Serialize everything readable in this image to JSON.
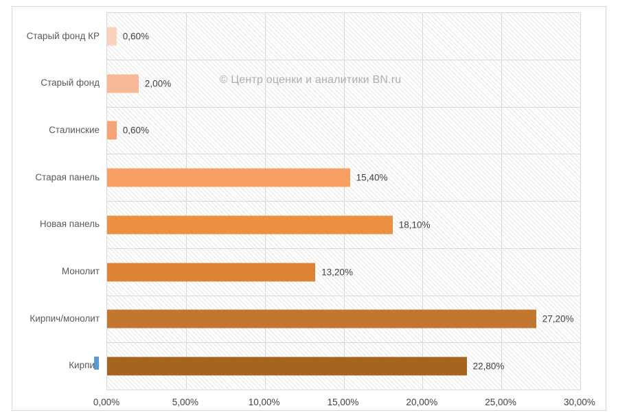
{
  "watermark": "© Центр оценки и аналитики BN.ru",
  "colors": {
    "frame_border": "#d6d6d6",
    "gridline": "#d9d9d9",
    "hatch_line": "#e8e6e4",
    "category_label": "#595959",
    "value_label": "#3f3f3f",
    "tick_label": "#3f3f3f",
    "watermark": "#b3ada9",
    "artifact_blue": "#5b9bd5"
  },
  "chart_data": {
    "type": "bar",
    "orientation": "horizontal",
    "title": "",
    "xlabel": "",
    "ylabel": "",
    "categories": [
      "Старый фонд КР",
      "Старый фонд",
      "Сталинские",
      "Старая панель",
      "Новая панель",
      "Монолит",
      "Кирпич/монолит",
      "Кирпич"
    ],
    "values": [
      0.6,
      2.0,
      0.6,
      15.4,
      18.1,
      13.2,
      27.2,
      22.8
    ],
    "value_labels": [
      "0,60%",
      "2,00%",
      "0,60%",
      "15,40%",
      "18,10%",
      "13,20%",
      "27,20%",
      "22,80%"
    ],
    "bar_colors": [
      "#FAD2BD",
      "#F7B99A",
      "#F5A478",
      "#F89F63",
      "#EC9142",
      "#DD8336",
      "#C3762F",
      "#A7641F"
    ],
    "xlim": [
      0,
      30
    ],
    "x_ticks": [
      {
        "value": 0,
        "label": "0,00%"
      },
      {
        "value": 5,
        "label": "5,00%"
      },
      {
        "value": 10,
        "label": "10,00%"
      },
      {
        "value": 15,
        "label": "15,00%"
      },
      {
        "value": 20,
        "label": "20,00%"
      },
      {
        "value": 25,
        "label": "25,00%"
      },
      {
        "value": 30,
        "label": "30,00%"
      }
    ],
    "grid": true,
    "legend": false,
    "plot_background": "diagonal-hatch"
  }
}
